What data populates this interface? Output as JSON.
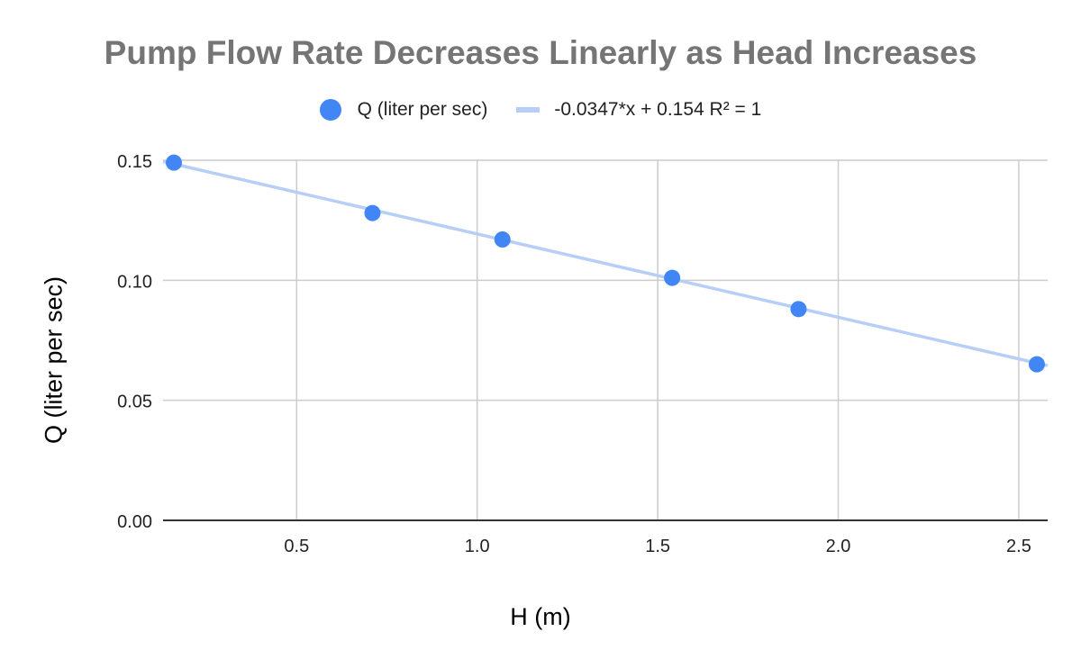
{
  "chart_data": {
    "type": "scatter",
    "title": "Pump Flow Rate Decreases Linearly as Head Increases",
    "xlabel": "H (m)",
    "ylabel": "Q (liter per sec)",
    "xlim": [
      0.13,
      2.58
    ],
    "ylim": [
      0,
      0.15
    ],
    "x_ticks": [
      "0.5",
      "1.0",
      "1.5",
      "2.0",
      "2.5"
    ],
    "y_ticks": [
      "0.00",
      "0.05",
      "0.10",
      "0.15"
    ],
    "grid": true,
    "legend_position": "top",
    "series": [
      {
        "name": "Q (liter per sec)",
        "color": "#4285F4",
        "x": [
          0.16,
          0.71,
          1.07,
          1.54,
          1.89,
          2.55
        ],
        "y": [
          0.149,
          0.128,
          0.117,
          0.101,
          0.088,
          0.065
        ]
      }
    ],
    "trendline": {
      "name": "-0.0347*x + 0.154 R² = 1",
      "color": "#B7CFF7",
      "slope": -0.0347,
      "intercept": 0.154
    }
  }
}
